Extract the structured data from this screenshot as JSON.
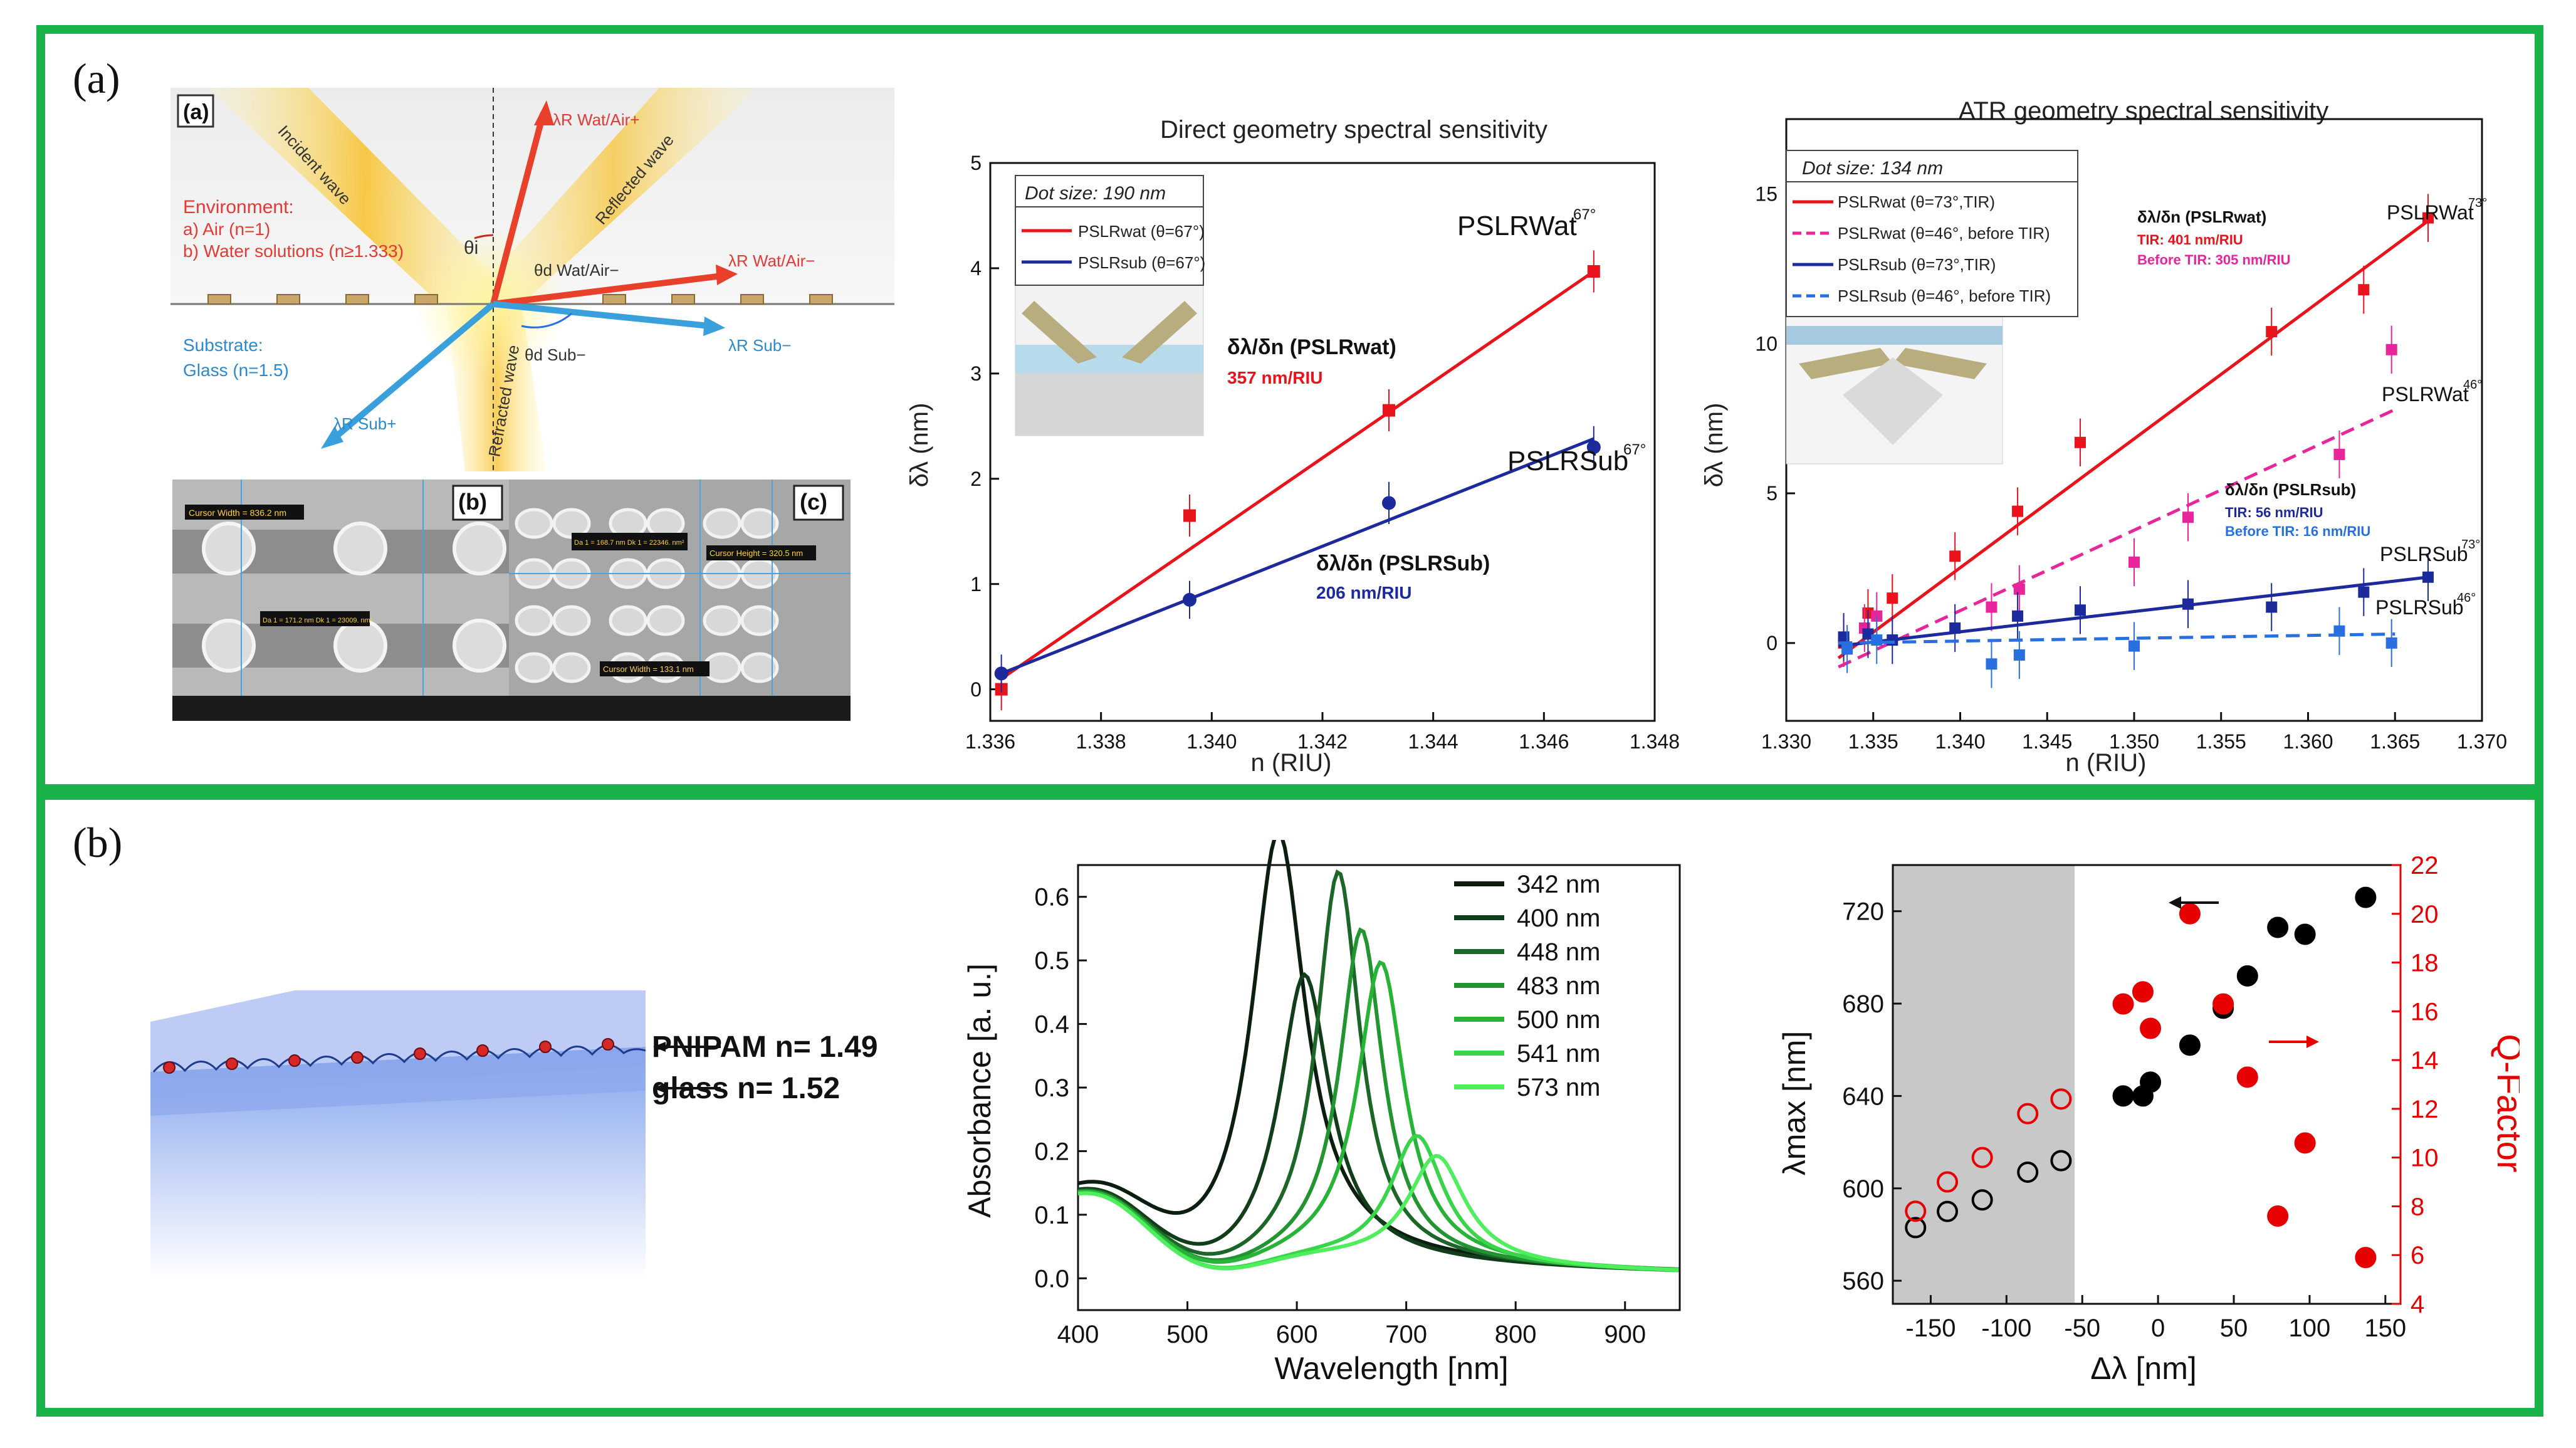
{
  "panels": {
    "a": {
      "label": "(a)",
      "schematic": {
        "sublabel": "(a)",
        "env_title": "Environment:",
        "env_air": "a) Air (n=1)",
        "env_water": "b) Water solutions (n≥1.333)",
        "substrate_title": "Substrate:",
        "substrate_glass": "Glass (n=1.5)",
        "incident": "Incident wave",
        "reflected": "Reflected wave",
        "refracted": "Refracted wave",
        "theta_i": "θi",
        "theta_d_wat": "θd Wat/Air−",
        "theta_d_sub": "θd Sub−",
        "lambda_wat_plus": "λR Wat/Air+",
        "lambda_wat_minus": "λR Wat/Air−",
        "lambda_sub_plus": "λR Sub+",
        "lambda_sub_minus": "λR Sub−"
      },
      "sem": {
        "b_label": "(b)",
        "c_label": "(c)",
        "b_cursor": "Cursor Width = 836.2 nm",
        "b_measure": "Da 1 = 171.2 nm  Dk 1 = 23009. nm²",
        "c_measure": "Da 1 = 168.7 nm  Dk 1 = 22346. nm²",
        "c_cursor_h": "Cursor Height = 320.5 nm",
        "c_cursor_w": "Cursor Width = 133.1 nm"
      }
    },
    "b": {
      "label": "(b)",
      "schematic": {
        "pnipam": "PNIPAM n= 1.49",
        "glass": "glass n= 1.52"
      }
    }
  },
  "chart_data": [
    {
      "type": "scatter",
      "title": "Direct geometry spectral sensitivity",
      "xlabel": "n (RIU)",
      "ylabel": "δλ (nm)",
      "xlim": [
        1.336,
        1.348
      ],
      "ylim": [
        -0.3,
        5
      ],
      "xticks": [
        "1.336",
        "1.338",
        "1.340",
        "1.342",
        "1.344",
        "1.346",
        "1.348"
      ],
      "yticks": [
        "0",
        "1",
        "2",
        "3",
        "4",
        "5"
      ],
      "legend_title": "Dot size: 190 nm",
      "legend": [
        "PSLRwat (θ=67°)",
        "PSLRsub (θ=67°)"
      ],
      "series": [
        {
          "name": "PSLRwat (θ=67°)",
          "color": "#e8131b",
          "marker": "square",
          "x": [
            1.3362,
            1.3396,
            1.3432,
            1.3469
          ],
          "y": [
            0.0,
            1.65,
            2.65,
            3.97
          ],
          "err": [
            0.2,
            0.2,
            0.2,
            0.2
          ],
          "fit": [
            [
              1.3362,
              0.1
            ],
            [
              1.3469,
              3.97
            ]
          ]
        },
        {
          "name": "PSLRsub (θ=67°)",
          "color": "#1c2a9c",
          "marker": "circle",
          "x": [
            1.3362,
            1.3396,
            1.3432,
            1.3469
          ],
          "y": [
            0.15,
            0.85,
            1.77,
            2.3
          ],
          "err": [
            0.18,
            0.18,
            0.2,
            0.2
          ],
          "fit": [
            [
              1.3362,
              0.15
            ],
            [
              1.3469,
              2.38
            ]
          ]
        }
      ],
      "annotations": {
        "wat_label": "PSLRWat",
        "wat_sup": "67°",
        "sub_label": "PSLRSub",
        "sub_sup": "67°",
        "sens_wat_title": "δλ/δn (PSLRwat)",
        "sens_wat_value": "357 nm/RIU",
        "sens_sub_title": "δλ/δn (PSLRSub)",
        "sens_sub_value": "206 nm/RIU"
      }
    },
    {
      "type": "scatter",
      "title": "ATR geometry spectral sensitivity",
      "xlabel": "n (RIU)",
      "ylabel": "δλ (nm)",
      "xlim": [
        1.33,
        1.37
      ],
      "ylim": [
        -2.6,
        17.5
      ],
      "xticks": [
        "1.330",
        "1.335",
        "1.340",
        "1.345",
        "1.350",
        "1.355",
        "1.360",
        "1.365",
        "1.370"
      ],
      "yticks": [
        "0",
        "5",
        "10",
        "15"
      ],
      "legend_title": "Dot size: 134 nm",
      "legend": [
        "PSLRwat (θ=73°,TIR)",
        "PSLRwat (θ=46°, before TIR)",
        "PSLRsub (θ=73°,TIR)",
        "PSLRsub (θ=46°, before TIR)"
      ],
      "series": [
        {
          "name": "PSLRwat (θ=73°,TIR)",
          "color": "#e8131b",
          "marker": "square",
          "dash": false,
          "x": [
            1.3333,
            1.3347,
            1.3361,
            1.3397,
            1.3433,
            1.3469,
            1.3579,
            1.3632,
            1.3669
          ],
          "y": [
            0.0,
            1.0,
            1.5,
            2.9,
            4.4,
            6.7,
            10.4,
            11.8,
            14.2
          ],
          "err": [
            0.8,
            0.8,
            0.8,
            0.8,
            0.8,
            0.8,
            0.8,
            0.8,
            0.8
          ],
          "fit": [
            [
              1.333,
              -0.5
            ],
            [
              1.3669,
              14.1
            ]
          ]
        },
        {
          "name": "PSLRwat (θ=46°, before TIR)",
          "color": "#e8259a",
          "marker": "square",
          "dash": true,
          "x": [
            1.3345,
            1.3352,
            1.3418,
            1.3434,
            1.35,
            1.3531,
            1.3618,
            1.3648
          ],
          "y": [
            0.5,
            0.9,
            1.2,
            1.8,
            2.7,
            4.2,
            6.3,
            9.8
          ],
          "err": [
            0.8,
            0.8,
            0.8,
            0.8,
            0.8,
            0.8,
            0.8,
            0.8
          ],
          "fit": [
            [
              1.333,
              -0.8
            ],
            [
              1.365,
              7.8
            ]
          ]
        },
        {
          "name": "PSLRsub (θ=73°,TIR)",
          "color": "#1c2a9c",
          "marker": "square",
          "dash": false,
          "x": [
            1.3333,
            1.3347,
            1.3361,
            1.3397,
            1.3433,
            1.3469,
            1.3531,
            1.3579,
            1.3632,
            1.3669
          ],
          "y": [
            0.2,
            0.3,
            0.1,
            0.5,
            0.9,
            1.1,
            1.3,
            1.2,
            1.7,
            2.2
          ],
          "err": [
            0.8,
            0.8,
            0.8,
            0.8,
            0.8,
            0.8,
            0.8,
            0.8,
            0.8,
            0.8
          ],
          "fit": [
            [
              1.333,
              -0.1
            ],
            [
              1.3669,
              2.2
            ]
          ]
        },
        {
          "name": "PSLRsub (θ=46°, before TIR)",
          "color": "#2a6fe0",
          "marker": "square",
          "dash": true,
          "x": [
            1.3335,
            1.3352,
            1.3418,
            1.3434,
            1.35,
            1.3618,
            1.3648
          ],
          "y": [
            -0.2,
            0.1,
            -0.7,
            -0.4,
            -0.1,
            0.4,
            0.0
          ],
          "err": [
            0.8,
            0.8,
            0.8,
            0.8,
            0.8,
            0.8,
            0.8
          ],
          "fit": [
            [
              1.333,
              0.0
            ],
            [
              1.365,
              0.3
            ]
          ]
        }
      ],
      "annotations": {
        "sens_wat_title": "δλ/δn (PSLRwat)",
        "sens_wat_tir": "TIR: 401 nm/RIU",
        "sens_wat_before": "Before TIR: 305 nm/RIU",
        "sens_sub_title": "δλ/δn (PSLRsub)",
        "sens_sub_tir": "TIR: 56 nm/RIU",
        "sens_sub_before": "Before TIR: 16 nm/RIU",
        "lbl_wat73": "PSLRWat",
        "sup_wat73": "73°",
        "lbl_wat46": "PSLRWat",
        "sup_wat46": "46°",
        "lbl_sub73": "PSLRSub",
        "sup_sub73": "73°",
        "lbl_sub46": "PSLRSub",
        "sup_sub46": "46°"
      }
    },
    {
      "type": "line",
      "xlabel": "Wavelength [nm]",
      "ylabel": "Absorbance [a. u.]",
      "xlim": [
        400,
        950
      ],
      "ylim": [
        -0.05,
        0.65
      ],
      "xticks": [
        "400",
        "500",
        "600",
        "700",
        "800",
        "900"
      ],
      "yticks": [
        "0.0",
        "0.1",
        "0.2",
        "0.3",
        "0.4",
        "0.5",
        "0.6"
      ],
      "legend_placement": "top-right",
      "series": [
        {
          "name": "342 nm",
          "color": "#0b1e0f",
          "peak": 583,
          "height": 0.68,
          "width": 30,
          "base": 0.08
        },
        {
          "name": "400 nm",
          "color": "#123d1a",
          "peak": 607,
          "height": 0.45,
          "width": 28,
          "base": 0.08
        },
        {
          "name": "448 nm",
          "color": "#1c6628",
          "peak": 638,
          "height": 0.61,
          "width": 24,
          "base": 0.08
        },
        {
          "name": "483 nm",
          "color": "#229430",
          "peak": 659,
          "height": 0.52,
          "width": 24,
          "base": 0.08
        },
        {
          "name": "500 nm",
          "color": "#27b436",
          "peak": 677,
          "height": 0.47,
          "width": 26,
          "base": 0.08
        },
        {
          "name": "541 nm",
          "color": "#38d54a",
          "peak": 710,
          "height": 0.2,
          "width": 30,
          "base": 0.08
        },
        {
          "name": "573 nm",
          "color": "#4eee5c",
          "peak": 728,
          "height": 0.17,
          "width": 32,
          "base": 0.08
        }
      ]
    },
    {
      "type": "scatter",
      "xlabel": "Δλ [nm]",
      "ylabel": "λmax [nm]",
      "y2label": "Q-Factor",
      "xlim": [
        -175,
        160
      ],
      "ylim": [
        550,
        740
      ],
      "y2lim": [
        4,
        22
      ],
      "xticks": [
        "-150",
        "-100",
        "-50",
        "0",
        "50",
        "100",
        "150"
      ],
      "yticks": [
        "560",
        "600",
        "640",
        "680",
        "720"
      ],
      "y2ticks": [
        "4",
        "6",
        "8",
        "10",
        "12",
        "14",
        "16",
        "18",
        "20",
        "22"
      ],
      "shaded_region": [
        -175,
        -55
      ],
      "series": [
        {
          "name": "λmax (open)",
          "color": "#000000",
          "filled": false,
          "x": [
            -160,
            -139,
            -116,
            -86,
            -64
          ],
          "y": [
            583,
            590,
            595,
            607,
            612
          ]
        },
        {
          "name": "λmax (filled)",
          "color": "#000000",
          "filled": true,
          "x": [
            -23,
            -10,
            -5,
            21,
            43,
            59,
            79,
            97,
            137
          ],
          "y": [
            640,
            640,
            646,
            662,
            678,
            692,
            713,
            710,
            726
          ]
        },
        {
          "name": "Q open",
          "color": "#e60000",
          "filled": false,
          "axis": "y2",
          "x": [
            -160,
            -139,
            -116,
            -86,
            -64
          ],
          "y": [
            7.8,
            9.0,
            10.0,
            11.8,
            12.4
          ]
        },
        {
          "name": "Q filled",
          "color": "#e60000",
          "filled": true,
          "axis": "y2",
          "x": [
            -23,
            -10,
            -5,
            21,
            43,
            59,
            79,
            97,
            137
          ],
          "y": [
            16.3,
            16.8,
            15.3,
            20.0,
            16.3,
            13.3,
            7.6,
            10.6,
            5.9
          ]
        }
      ]
    }
  ]
}
